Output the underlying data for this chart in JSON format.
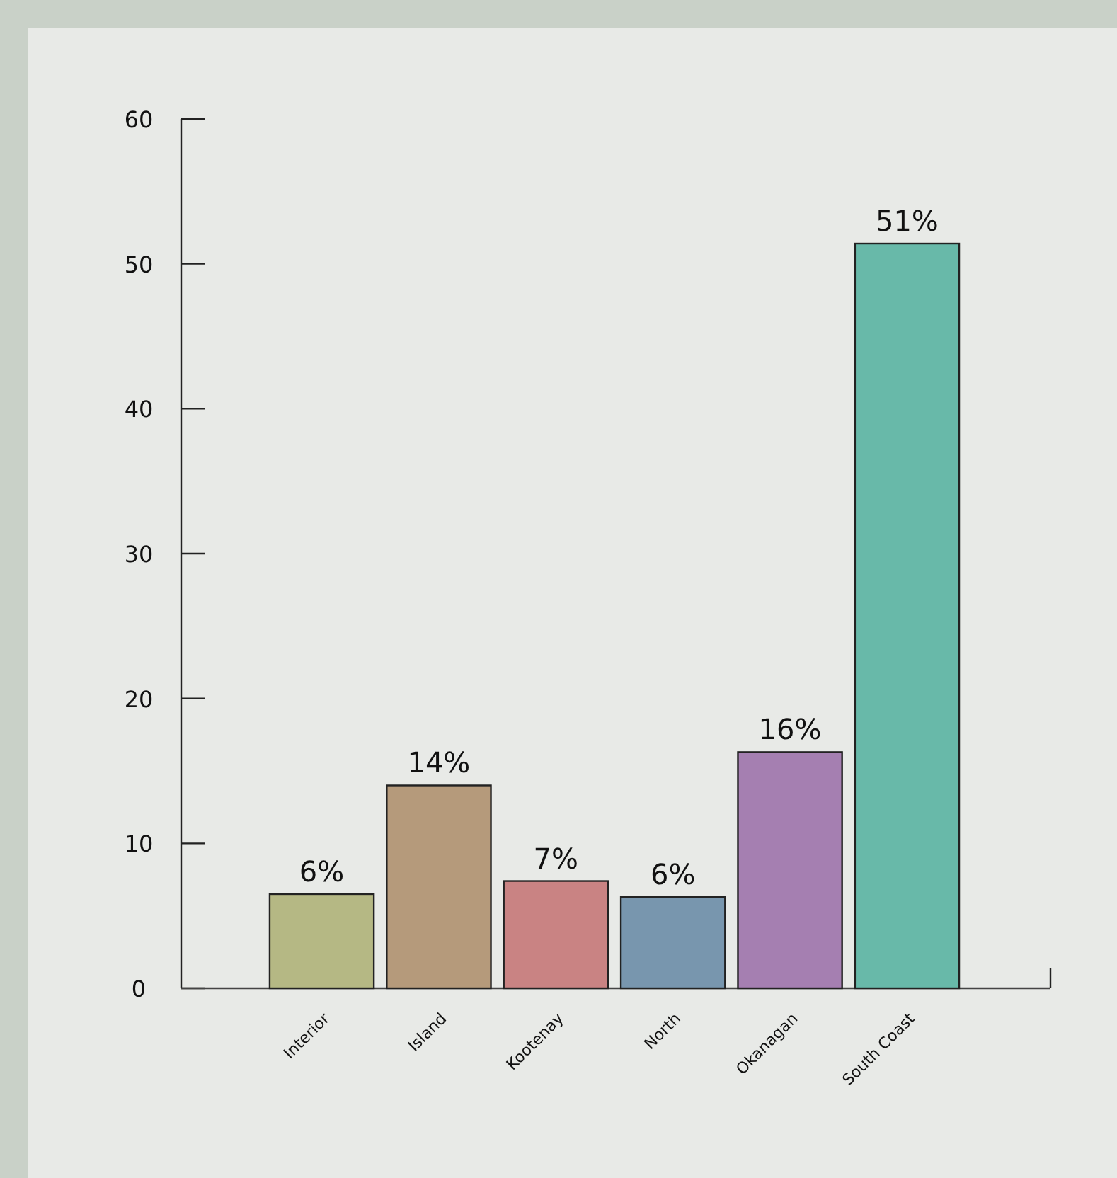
{
  "chart_data": {
    "type": "bar",
    "categories": [
      "Interior",
      "Island",
      "Kootenay",
      "North",
      "Okanagan",
      "South Coast"
    ],
    "values": [
      6.5,
      14,
      7.4,
      6.3,
      16.3,
      51.4
    ],
    "colors": [
      "#b5b884",
      "#b59a7b",
      "#c98383",
      "#7896ae",
      "#a57fb1",
      "#68b9a9"
    ],
    "value_labels": [
      "6%",
      "14%",
      "7%",
      "6%",
      "16%",
      "51%"
    ],
    "ylim": [
      0,
      60
    ],
    "yticks": [
      0,
      10,
      20,
      30,
      40,
      50,
      60
    ],
    "grid": false
  }
}
